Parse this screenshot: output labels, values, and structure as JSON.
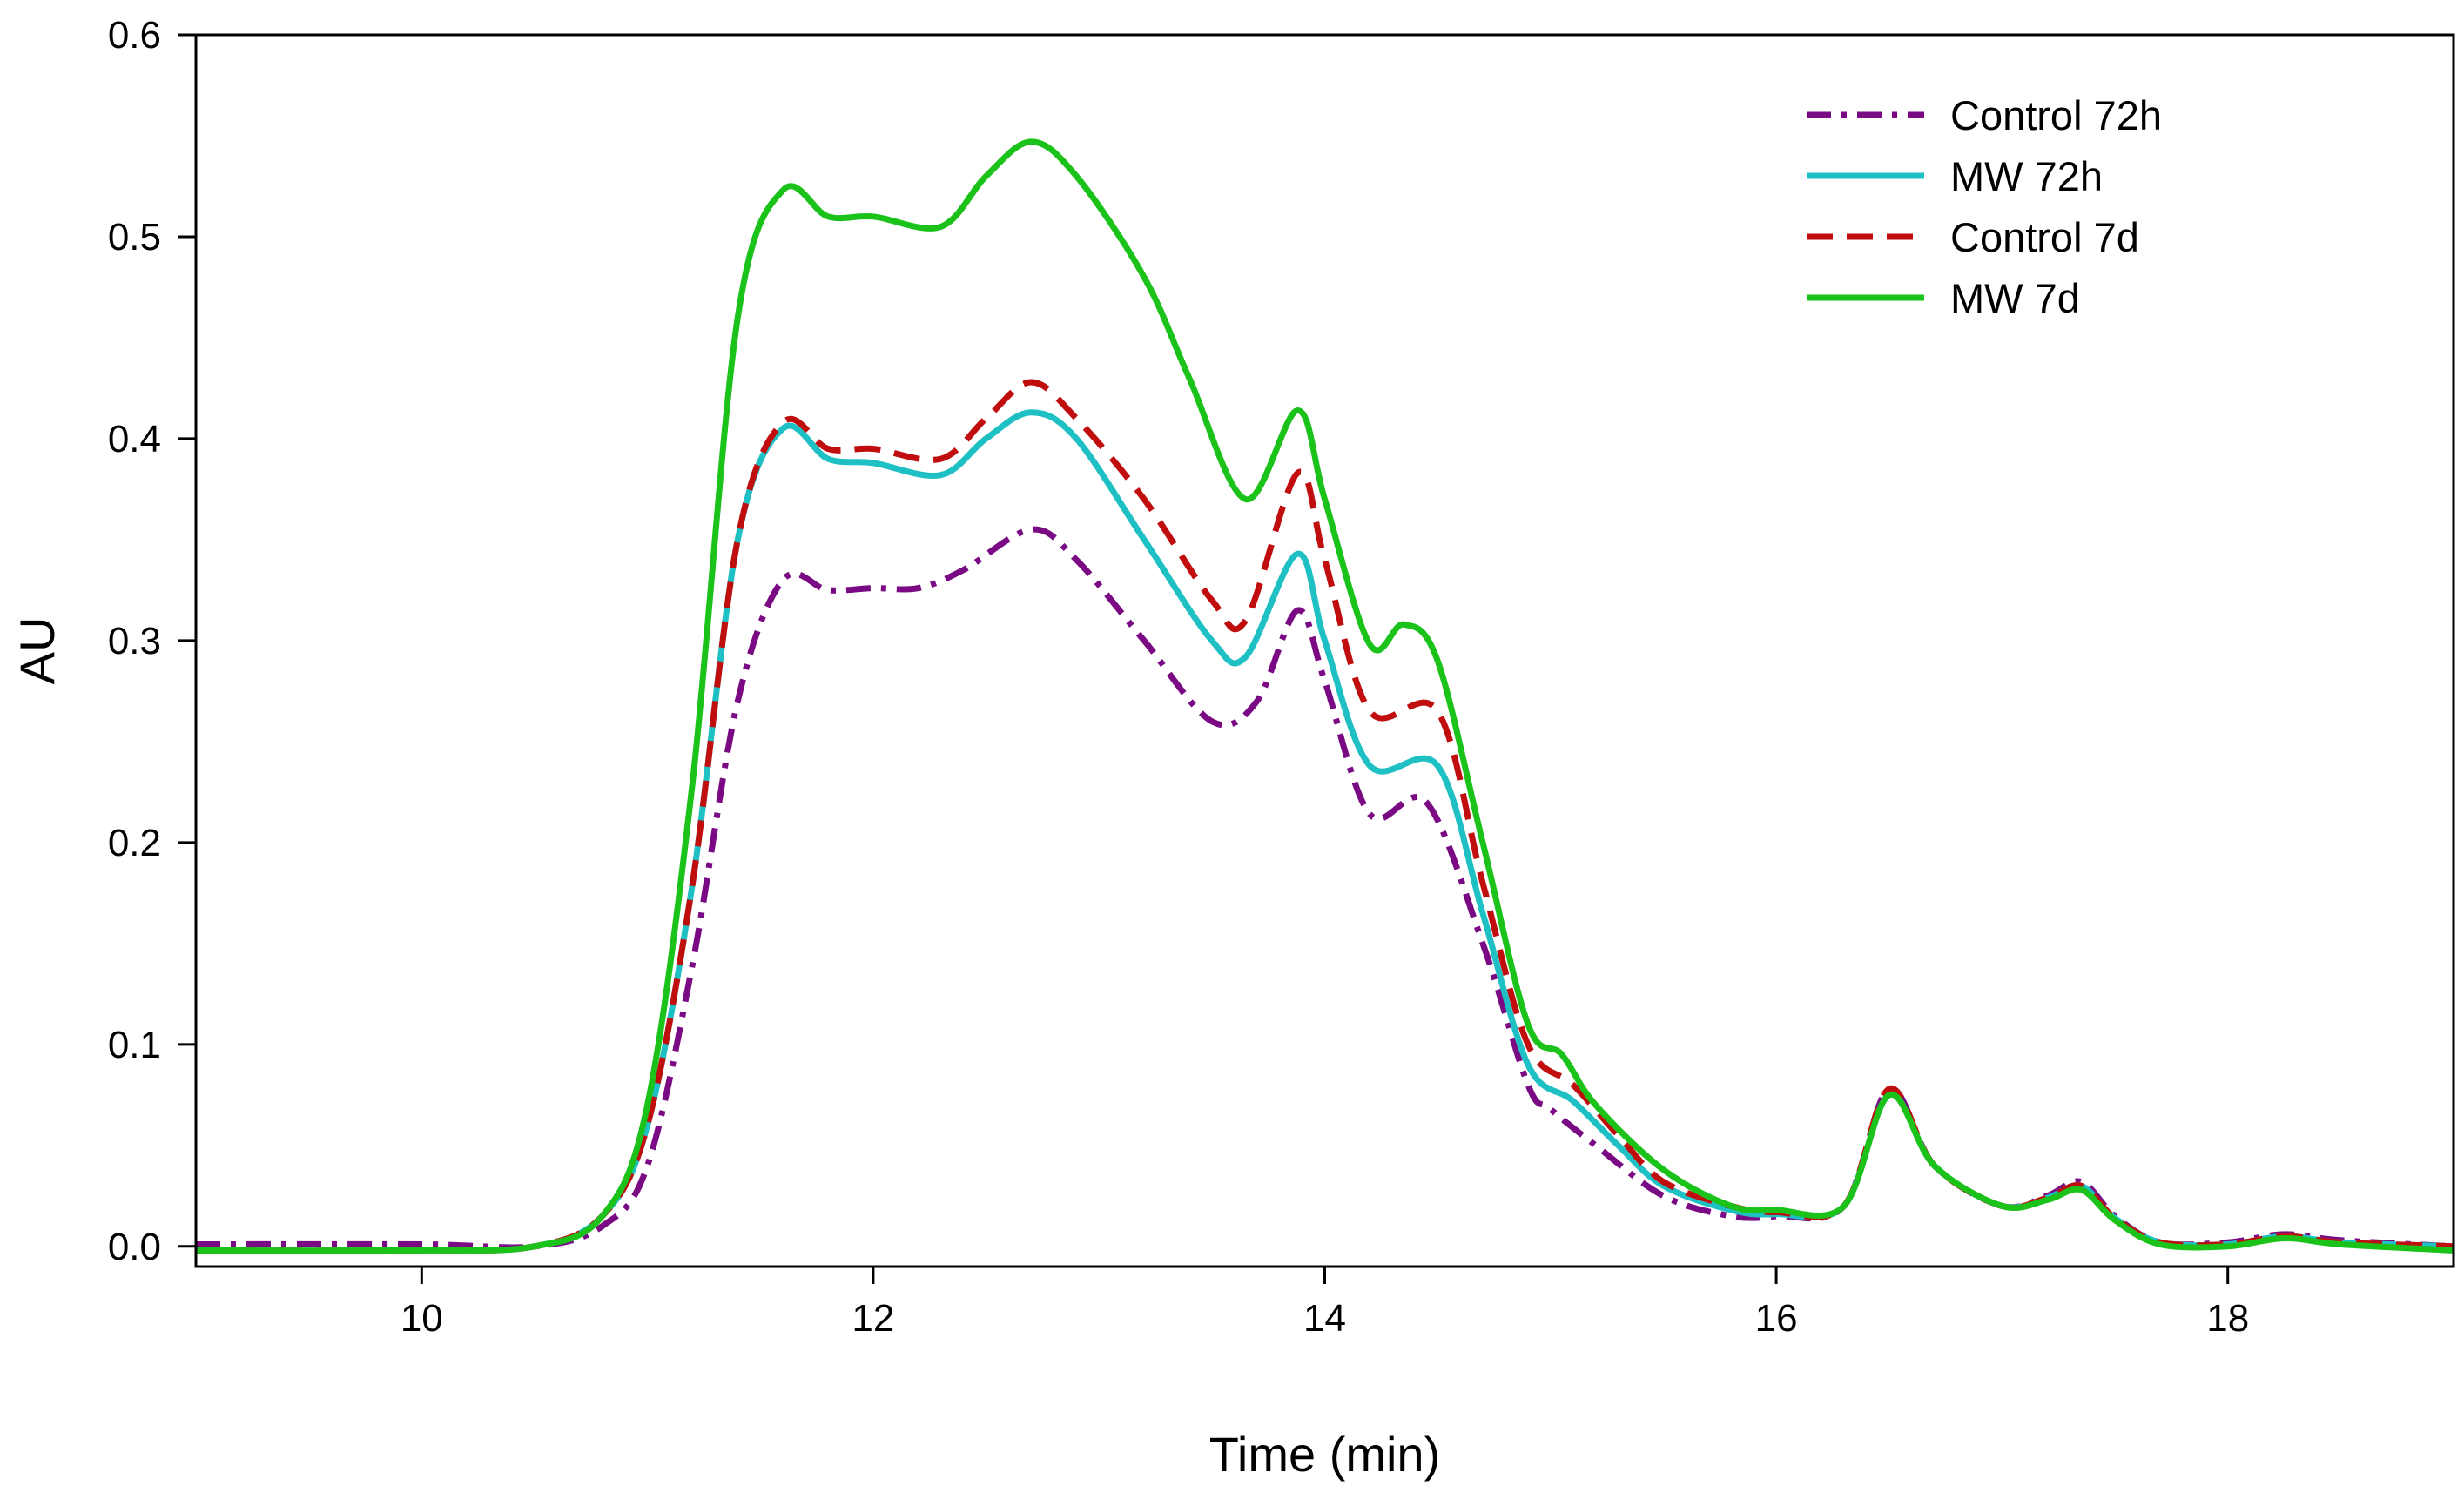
{
  "chart_data": {
    "type": "line",
    "title": "",
    "xlabel": "Time (min)",
    "ylabel": "AU",
    "xlim": [
      9,
      19
    ],
    "ylim": [
      -0.01,
      0.6
    ],
    "xticks": [
      10,
      12,
      14,
      16,
      18
    ],
    "yticks": [
      0.0,
      0.1,
      0.2,
      0.3,
      0.4,
      0.5,
      0.6
    ],
    "xtick_labels": [
      "10",
      "12",
      "14",
      "16",
      "18"
    ],
    "ytick_labels": [
      "0.0",
      "0.1",
      "0.2",
      "0.3",
      "0.4",
      "0.5",
      "0.6"
    ],
    "grid": false,
    "legend_position": "top-right",
    "series": [
      {
        "name": "Control 72h",
        "color": "#7a0a84",
        "dash": "dashdot",
        "points": [
          [
            9,
            0.001
          ],
          [
            10,
            0.001
          ],
          [
            10.5,
            0.0
          ],
          [
            10.8,
            0.01
          ],
          [
            11.0,
            0.04
          ],
          [
            11.2,
            0.14
          ],
          [
            11.4,
            0.27
          ],
          [
            11.6,
            0.33
          ],
          [
            11.8,
            0.325
          ],
          [
            12.0,
            0.326
          ],
          [
            12.2,
            0.326
          ],
          [
            12.4,
            0.335
          ],
          [
            12.7,
            0.355
          ],
          [
            12.9,
            0.34
          ],
          [
            13.2,
            0.3
          ],
          [
            13.5,
            0.26
          ],
          [
            13.7,
            0.27
          ],
          [
            13.88,
            0.315
          ],
          [
            14.0,
            0.28
          ],
          [
            14.2,
            0.214
          ],
          [
            14.45,
            0.22
          ],
          [
            14.7,
            0.15
          ],
          [
            14.9,
            0.08
          ],
          [
            15.0,
            0.068
          ],
          [
            15.2,
            0.05
          ],
          [
            15.5,
            0.025
          ],
          [
            15.8,
            0.015
          ],
          [
            16.0,
            0.015
          ],
          [
            16.3,
            0.02
          ],
          [
            16.5,
            0.078
          ],
          [
            16.7,
            0.04
          ],
          [
            17.0,
            0.02
          ],
          [
            17.2,
            0.025
          ],
          [
            17.35,
            0.032
          ],
          [
            17.5,
            0.015
          ],
          [
            17.7,
            0.002
          ],
          [
            18.0,
            0.002
          ],
          [
            18.25,
            0.006
          ],
          [
            18.5,
            0.003
          ],
          [
            19,
            0.0
          ]
        ]
      },
      {
        "name": "MW 72h",
        "color": "#1ec0c4",
        "dash": "solid",
        "points": [
          [
            9,
            -0.002
          ],
          [
            10,
            -0.002
          ],
          [
            10.5,
            0.0
          ],
          [
            10.8,
            0.015
          ],
          [
            11.0,
            0.06
          ],
          [
            11.2,
            0.18
          ],
          [
            11.4,
            0.35
          ],
          [
            11.6,
            0.405
          ],
          [
            11.8,
            0.39
          ],
          [
            12.0,
            0.388
          ],
          [
            12.3,
            0.382
          ],
          [
            12.5,
            0.4
          ],
          [
            12.7,
            0.413
          ],
          [
            12.9,
            0.4
          ],
          [
            13.2,
            0.35
          ],
          [
            13.5,
            0.3
          ],
          [
            13.65,
            0.292
          ],
          [
            13.88,
            0.343
          ],
          [
            14.0,
            0.3
          ],
          [
            14.2,
            0.238
          ],
          [
            14.5,
            0.238
          ],
          [
            14.7,
            0.165
          ],
          [
            14.9,
            0.09
          ],
          [
            15.1,
            0.072
          ],
          [
            15.3,
            0.05
          ],
          [
            15.5,
            0.03
          ],
          [
            15.8,
            0.018
          ],
          [
            16.0,
            0.016
          ],
          [
            16.3,
            0.02
          ],
          [
            16.5,
            0.075
          ],
          [
            16.7,
            0.04
          ],
          [
            17.0,
            0.02
          ],
          [
            17.2,
            0.024
          ],
          [
            17.35,
            0.03
          ],
          [
            17.5,
            0.014
          ],
          [
            17.7,
            0.002
          ],
          [
            18.0,
            0.001
          ],
          [
            18.25,
            0.005
          ],
          [
            18.5,
            0.002
          ],
          [
            19,
            0.0
          ]
        ]
      },
      {
        "name": "Control 7d",
        "color": "#c00d0d",
        "dash": "dashed",
        "points": [
          [
            9,
            -0.002
          ],
          [
            10,
            -0.002
          ],
          [
            10.5,
            0.0
          ],
          [
            10.8,
            0.015
          ],
          [
            11.0,
            0.06
          ],
          [
            11.2,
            0.18
          ],
          [
            11.4,
            0.35
          ],
          [
            11.6,
            0.408
          ],
          [
            11.8,
            0.395
          ],
          [
            12.0,
            0.395
          ],
          [
            12.3,
            0.39
          ],
          [
            12.5,
            0.41
          ],
          [
            12.7,
            0.428
          ],
          [
            12.9,
            0.41
          ],
          [
            13.2,
            0.37
          ],
          [
            13.5,
            0.32
          ],
          [
            13.65,
            0.31
          ],
          [
            13.88,
            0.383
          ],
          [
            14.0,
            0.34
          ],
          [
            14.2,
            0.265
          ],
          [
            14.5,
            0.265
          ],
          [
            14.7,
            0.18
          ],
          [
            14.9,
            0.1
          ],
          [
            15.1,
            0.08
          ],
          [
            15.3,
            0.055
          ],
          [
            15.5,
            0.032
          ],
          [
            15.8,
            0.02
          ],
          [
            16.0,
            0.017
          ],
          [
            16.3,
            0.02
          ],
          [
            16.5,
            0.078
          ],
          [
            16.7,
            0.04
          ],
          [
            17.0,
            0.02
          ],
          [
            17.2,
            0.024
          ],
          [
            17.35,
            0.03
          ],
          [
            17.5,
            0.014
          ],
          [
            17.7,
            0.002
          ],
          [
            18.0,
            0.001
          ],
          [
            18.25,
            0.005
          ],
          [
            18.5,
            0.002
          ],
          [
            19,
            0.0
          ]
        ]
      },
      {
        "name": "MW 7d",
        "color": "#1ac21a",
        "dash": "solid",
        "points": [
          [
            9,
            -0.002
          ],
          [
            10,
            -0.002
          ],
          [
            10.5,
            0.0
          ],
          [
            10.8,
            0.015
          ],
          [
            11.0,
            0.07
          ],
          [
            11.2,
            0.23
          ],
          [
            11.4,
            0.46
          ],
          [
            11.6,
            0.523
          ],
          [
            11.8,
            0.51
          ],
          [
            12.0,
            0.51
          ],
          [
            12.3,
            0.505
          ],
          [
            12.5,
            0.53
          ],
          [
            12.7,
            0.547
          ],
          [
            12.9,
            0.53
          ],
          [
            13.2,
            0.48
          ],
          [
            13.4,
            0.43
          ],
          [
            13.65,
            0.37
          ],
          [
            13.88,
            0.414
          ],
          [
            14.0,
            0.37
          ],
          [
            14.2,
            0.298
          ],
          [
            14.35,
            0.308
          ],
          [
            14.5,
            0.29
          ],
          [
            14.7,
            0.2
          ],
          [
            14.9,
            0.11
          ],
          [
            15.05,
            0.095
          ],
          [
            15.2,
            0.07
          ],
          [
            15.5,
            0.038
          ],
          [
            15.8,
            0.02
          ],
          [
            16.0,
            0.018
          ],
          [
            16.3,
            0.02
          ],
          [
            16.5,
            0.075
          ],
          [
            16.7,
            0.04
          ],
          [
            17.0,
            0.02
          ],
          [
            17.2,
            0.023
          ],
          [
            17.35,
            0.028
          ],
          [
            17.5,
            0.013
          ],
          [
            17.7,
            0.001
          ],
          [
            18.0,
            0.0
          ],
          [
            18.25,
            0.004
          ],
          [
            18.5,
            0.001
          ],
          [
            19,
            -0.002
          ]
        ]
      }
    ]
  }
}
